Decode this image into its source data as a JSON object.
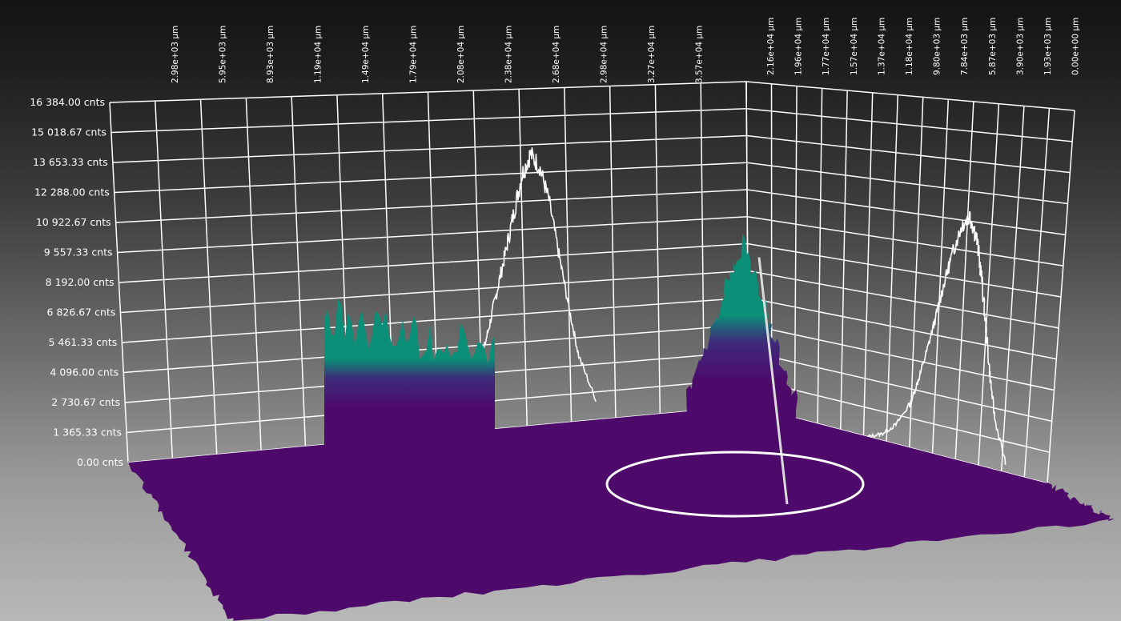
{
  "chart_data": {
    "type": "surface3d",
    "colors": {
      "base": "#4e0a6a",
      "mid": "#3d2b7a",
      "peak": "#0b8f78",
      "grid": "#ffffff",
      "projection": "#ffffff"
    },
    "z_axis": {
      "unit": "cnts",
      "range": [
        0,
        16384
      ],
      "ticks": [
        "0.00 cnts",
        "1 365.33 cnts",
        "2 730.67 cnts",
        "4 096.00 cnts",
        "5 461.33 cnts",
        "6 826.67 cnts",
        "8 192.00 cnts",
        "9 557.33 cnts",
        "10 922.67 cnts",
        "12 288.00 cnts",
        "13 653.33 cnts",
        "15 018.67 cnts",
        "16 384.00 cnts"
      ]
    },
    "x_axis": {
      "unit": "µm",
      "ticks": [
        "2.98e+03 µm",
        "5.95e+03 µm",
        "8.93e+03 µm",
        "1.19e+04 µm",
        "1.49e+04 µm",
        "1.79e+04 µm",
        "2.08e+04 µm",
        "2.38e+04 µm",
        "2.68e+04 µm",
        "2.98e+04 µm",
        "3.27e+04 µm",
        "3.57e+04 µm"
      ]
    },
    "y_axis": {
      "unit": "µm",
      "ticks": [
        "2.16e+04 µm",
        "1.96e+04 µm",
        "1.77e+04 µm",
        "1.57e+04 µm",
        "1.37e+04 µm",
        "1.18e+04 µm",
        "9.80e+03 µm",
        "7.84e+03 µm",
        "5.87e+03 µm",
        "3.90e+03 µm",
        "1.93e+03 µm",
        "0.00e+00 µm"
      ]
    },
    "features": [
      {
        "shape": "plateau",
        "x_um": 10000,
        "height_cnts": 7000
      },
      {
        "shape": "peak",
        "x_um": 30500,
        "height_cnts": 10500
      }
    ],
    "projection_x": {
      "x_um": [
        17000,
        18000,
        19000,
        20000,
        20500,
        21000,
        21500,
        22000,
        22500,
        23000,
        23500,
        24000,
        24500,
        25000,
        25500,
        26000,
        27000
      ],
      "z_cnts": [
        0,
        250,
        900,
        2300,
        3600,
        5200,
        6900,
        8600,
        10400,
        12200,
        13200,
        12600,
        10900,
        8200,
        5600,
        3200,
        800
      ]
    },
    "projection_y": {
      "y_um": [
        13000,
        12000,
        11000,
        10000,
        9500,
        9000,
        8500,
        8000,
        7500,
        7000,
        6500,
        6000,
        5500,
        5000,
        4500,
        4000,
        3000
      ],
      "z_cnts": [
        0,
        300,
        900,
        2100,
        3300,
        4700,
        6300,
        8000,
        9500,
        10700,
        11200,
        10300,
        8500,
        6200,
        4000,
        2200,
        300
      ]
    }
  }
}
